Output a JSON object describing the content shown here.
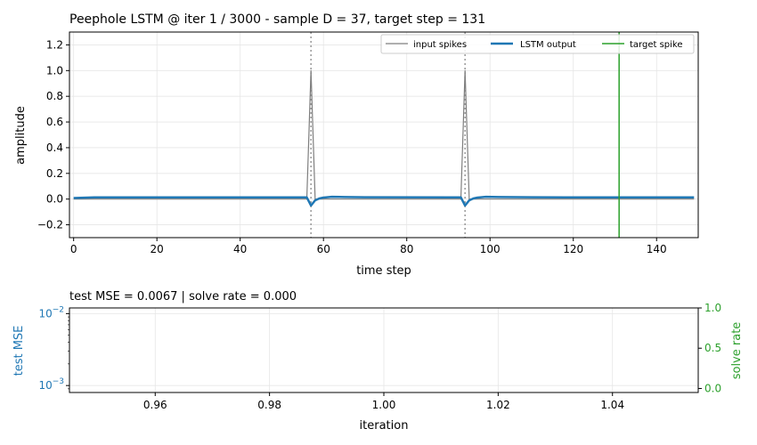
{
  "chart_data": [
    {
      "type": "line",
      "title": "Peephole LSTM @ iter 1 / 3000  -  sample D = 37, target step = 131",
      "xlabel": "time step",
      "ylabel": "amplitude",
      "xlim": [
        -1,
        150
      ],
      "ylim": [
        -0.3,
        1.3
      ],
      "xticks": [
        "0",
        "20",
        "40",
        "60",
        "80",
        "100",
        "120",
        "140"
      ],
      "yticks": [
        "−0.2",
        "0.0",
        "0.2",
        "0.4",
        "0.6",
        "0.8",
        "1.0",
        "1.2"
      ],
      "grid": true,
      "legend_placement": "top-right",
      "input_spike_steps": [
        57,
        94
      ],
      "target_step": 131,
      "series": [
        {
          "name": "input spikes",
          "color": "#7f7f7f",
          "x": [
            0,
            56,
            57,
            58,
            93,
            94,
            95,
            149
          ],
          "y": [
            0,
            0,
            1.0,
            0,
            0,
            1.0,
            0,
            0
          ]
        },
        {
          "name": "LSTM output",
          "color": "#1f77b4",
          "x": [
            0,
            5,
            56,
            57,
            58,
            59,
            60,
            62,
            65,
            70,
            93,
            94,
            95,
            96,
            97,
            99,
            102,
            110,
            149
          ],
          "y": [
            0.008,
            0.013,
            0.013,
            -0.05,
            -0.01,
            0.005,
            0.012,
            0.018,
            0.016,
            0.014,
            0.013,
            -0.05,
            -0.01,
            0.005,
            0.012,
            0.018,
            0.016,
            0.014,
            0.013
          ]
        },
        {
          "name": "target spike",
          "color": "#2ca02c",
          "x": [
            131,
            131
          ],
          "y": [
            -0.3,
            1.3
          ]
        }
      ]
    },
    {
      "type": "line",
      "title": "test MSE = 0.0067  |  solve rate = 0.000",
      "xlabel": "iteration",
      "ylabel": "test MSE",
      "y2label": "solve rate",
      "xlim": [
        0.945,
        1.055
      ],
      "xticks": [
        "0.96",
        "0.98",
        "1.00",
        "1.02",
        "1.04"
      ],
      "y_scale": "log",
      "ylim": [
        0.0008,
        0.012
      ],
      "yticks_major": [
        0.001,
        0.01
      ],
      "yticks": [
        "10−3",
        "10−2"
      ],
      "y2lim": [
        -0.05,
        1.0
      ],
      "y2ticks": [
        "0.0",
        "0.5",
        "1.0"
      ],
      "grid": true,
      "colors": {
        "left_axis": "#1f77b4",
        "right_axis": "#2ca02c"
      },
      "series": []
    }
  ]
}
